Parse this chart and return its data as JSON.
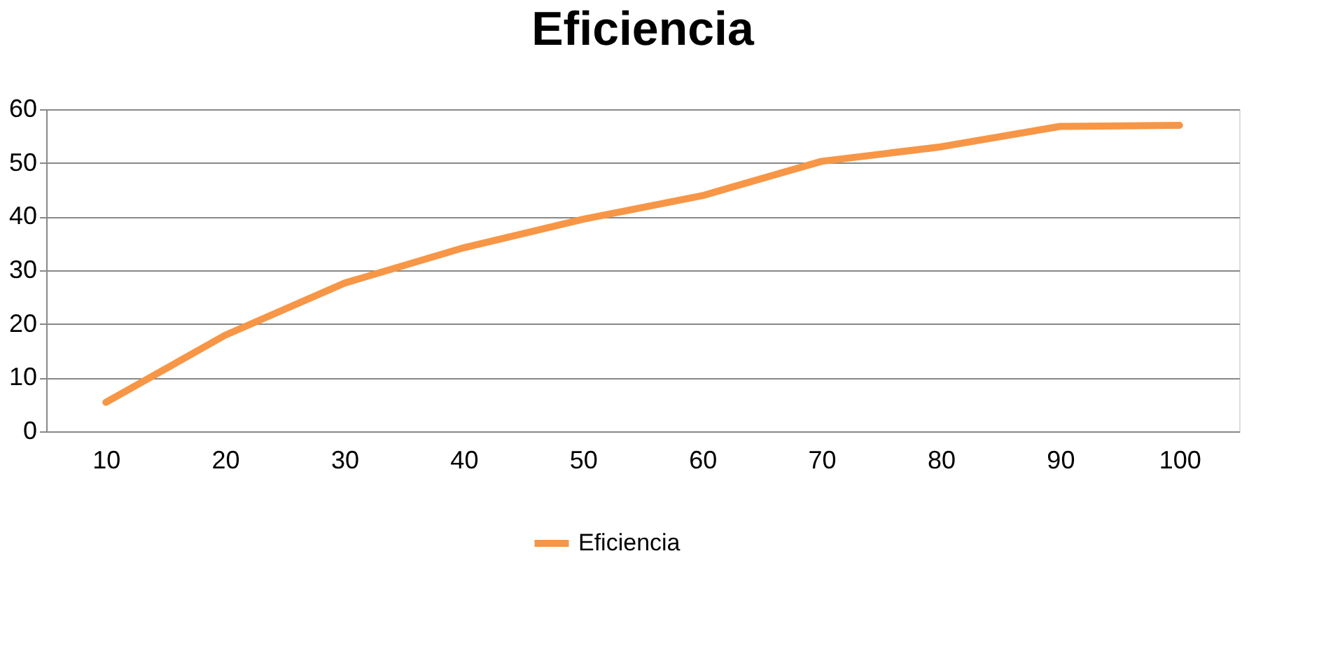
{
  "chart_data": {
    "type": "line",
    "title": "Eficiencia",
    "categories": [
      "10",
      "20",
      "30",
      "40",
      "50",
      "60",
      "70",
      "80",
      "90",
      "100"
    ],
    "series": [
      {
        "name": "Eficiencia",
        "color": "#f79646",
        "values": [
          5.4,
          17.9,
          27.6,
          34.2,
          39.5,
          43.9,
          50.3,
          53.0,
          56.8,
          57.0
        ]
      }
    ],
    "ylim": [
      0,
      60
    ],
    "yticks": [
      0,
      10,
      20,
      30,
      40,
      50,
      60
    ],
    "grid": "y",
    "legend": "bottom",
    "marker": "none",
    "line_style": "solid"
  }
}
